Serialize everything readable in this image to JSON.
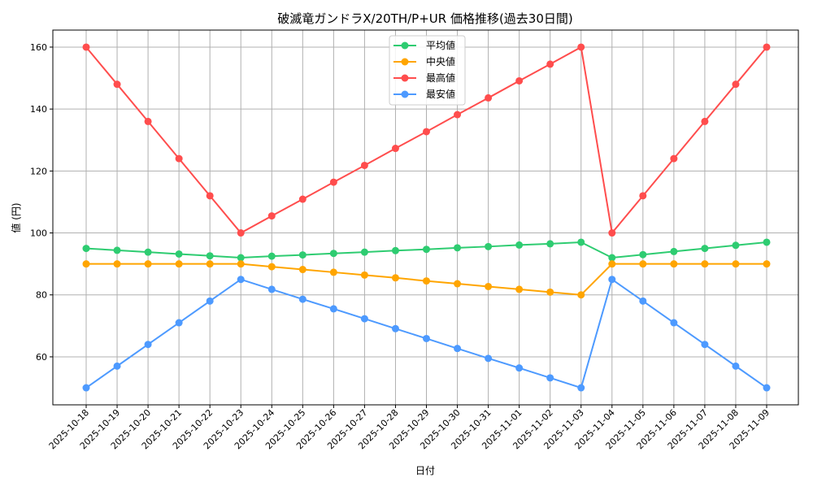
{
  "chart_data": {
    "type": "line",
    "title": "破滅竜ガンドラX/20TH/P+UR 価格推移(過去30日間)",
    "xlabel": "日付",
    "ylabel": "値 (円)",
    "ylim": [
      44.5,
      165.5
    ],
    "yticks": [
      60,
      80,
      100,
      120,
      140,
      160
    ],
    "grid": true,
    "legend_position": "top-center",
    "categories": [
      "2025-10-18",
      "2025-10-19",
      "2025-10-20",
      "2025-10-21",
      "2025-10-22",
      "2025-10-23",
      "2025-10-24",
      "2025-10-25",
      "2025-10-26",
      "2025-10-27",
      "2025-10-28",
      "2025-10-29",
      "2025-10-30",
      "2025-10-31",
      "2025-11-01",
      "2025-11-02",
      "2025-11-03",
      "2025-11-04",
      "2025-11-05",
      "2025-11-06",
      "2025-11-07",
      "2025-11-08",
      "2025-11-09"
    ],
    "series": [
      {
        "name": "平均値",
        "color": "#2ecc71",
        "values": [
          95,
          94.4,
          93.8,
          93.2,
          92.6,
          92,
          92.5,
          92.9,
          93.4,
          93.8,
          94.3,
          94.7,
          95.2,
          95.6,
          96.1,
          96.5,
          97,
          92,
          93,
          94,
          95,
          96,
          97
        ]
      },
      {
        "name": "中央値",
        "color": "#ffa500",
        "values": [
          90,
          90,
          90,
          90,
          90,
          90,
          89.1,
          88.2,
          87.3,
          86.4,
          85.5,
          84.5,
          83.6,
          82.7,
          81.8,
          80.9,
          80,
          90,
          90,
          90,
          90,
          90,
          90
        ]
      },
      {
        "name": "最高値",
        "color": "#ff4d4d",
        "values": [
          160,
          148,
          136,
          124,
          112,
          100,
          105.5,
          110.9,
          116.4,
          121.8,
          127.3,
          132.7,
          138.2,
          143.6,
          149.1,
          154.5,
          160,
          100,
          112,
          124,
          136,
          148,
          160
        ]
      },
      {
        "name": "最安値",
        "color": "#4d9aff",
        "values": [
          50,
          57,
          64,
          71,
          78,
          85,
          81.8,
          78.6,
          75.5,
          72.3,
          69.1,
          65.9,
          62.7,
          59.5,
          56.4,
          53.2,
          50,
          85,
          78,
          71,
          64,
          57,
          50
        ]
      }
    ]
  }
}
